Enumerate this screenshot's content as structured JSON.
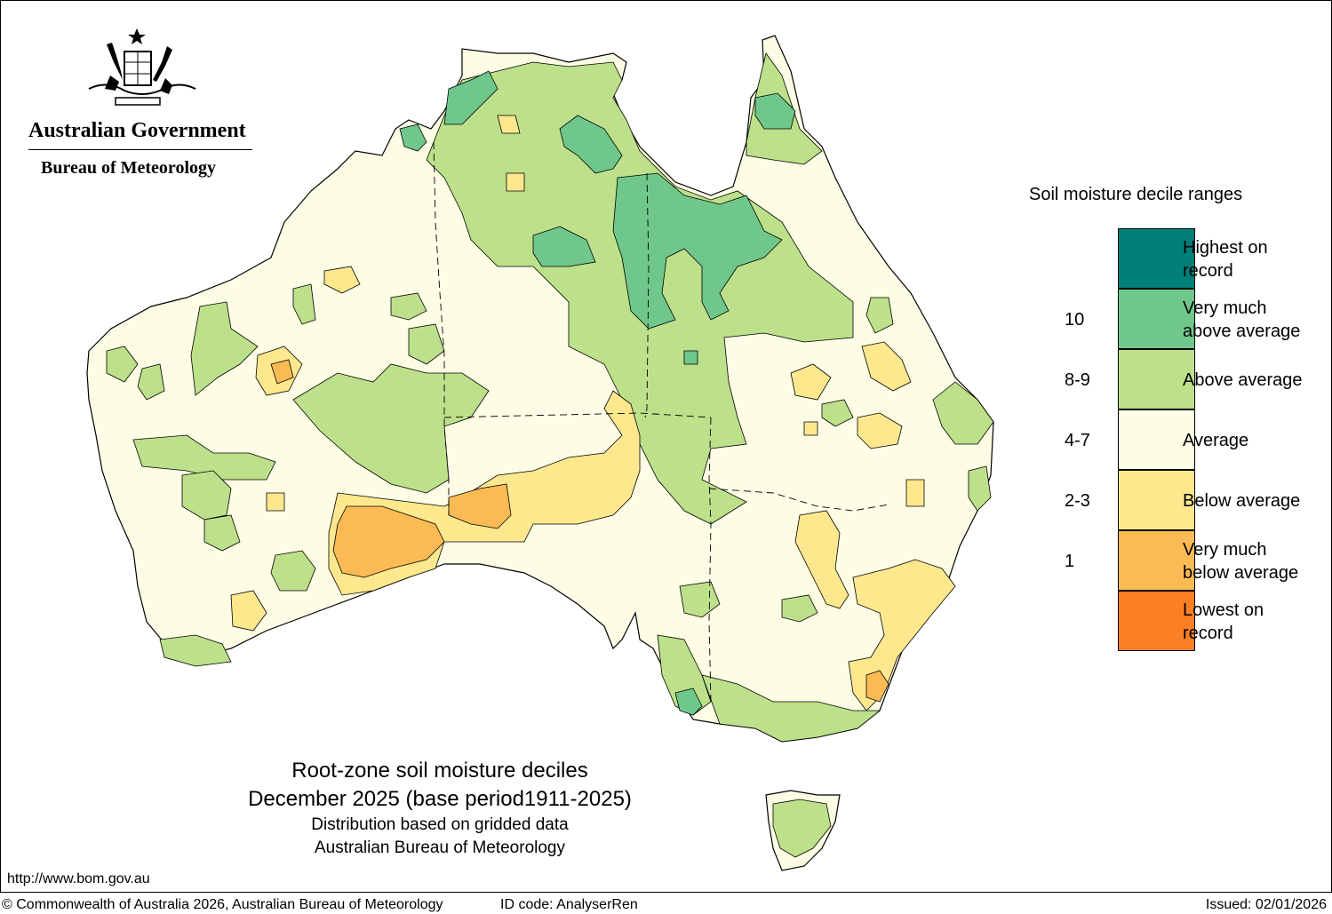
{
  "header": {
    "government": "Australian Government",
    "bureau": "Bureau of Meteorology",
    "crest_icon": "commonwealth-coat-of-arms-icon"
  },
  "legend": {
    "title": "Soil moisture decile ranges",
    "ranges": [
      {
        "label": "Highest on record",
        "decile": "",
        "color": "#007f76"
      },
      {
        "label": "Very much above average",
        "decile": "10",
        "color": "#6fc78c"
      },
      {
        "label": "Above average",
        "decile": "8-9",
        "color": "#bde08a"
      },
      {
        "label": "Average",
        "decile": "4-7",
        "color": "#fdfde6"
      },
      {
        "label": "Below average",
        "decile": "2-3",
        "color": "#fde88e"
      },
      {
        "label": "Very much below average",
        "decile": "1",
        "color": "#fcba55"
      },
      {
        "label": "Lowest on record",
        "decile": "",
        "color": "#fd7f24"
      }
    ]
  },
  "caption": {
    "title": "Root-zone soil moisture deciles",
    "period": "December 2025 (base period1911-2025)",
    "distribution": "Distribution based on gridded data",
    "source": "Australian Bureau of Meteorology"
  },
  "footer": {
    "website": "http://www.bom.gov.au",
    "copyright": "© Commonwealth of Australia 2026, Australian Bureau of Meteorology",
    "id_code": "ID code: AnalyserRen",
    "issued": "Issued: 02/01/2026"
  },
  "map": {
    "region": "Australia",
    "colors": {
      "average": "#fdfde6",
      "above": "#bde08a",
      "very_above": "#6fc78c",
      "below": "#fde88e",
      "very_below": "#fcba55",
      "lowest": "#fd7f24"
    }
  }
}
